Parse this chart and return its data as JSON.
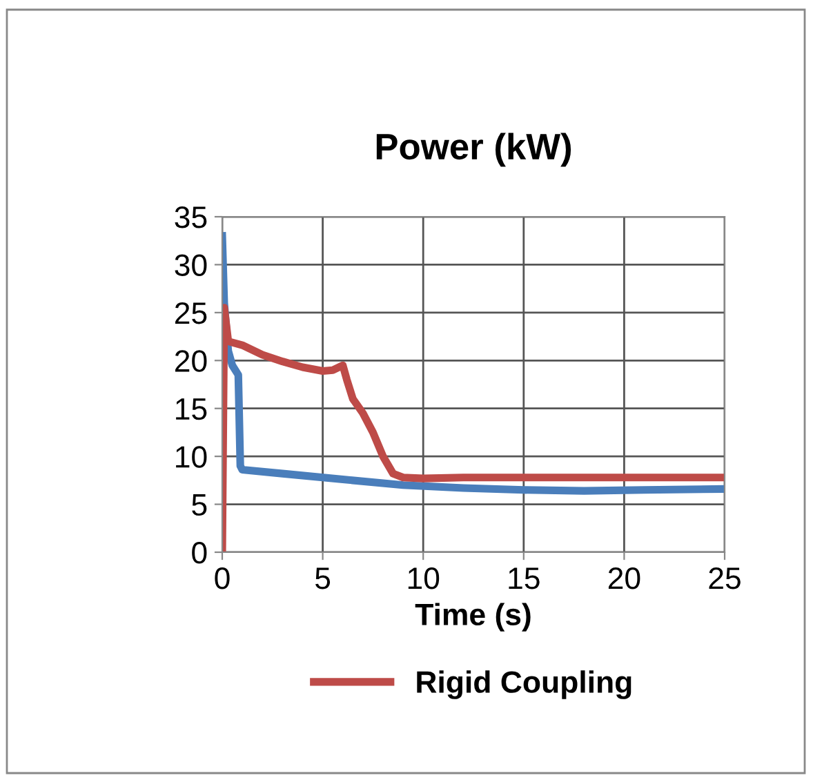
{
  "chart_data": {
    "type": "line",
    "title": "Power (kW)",
    "xlabel": "Time (s)",
    "xlim": [
      0,
      25
    ],
    "xticks": [
      0,
      5,
      10,
      15,
      20,
      25
    ],
    "ylim": [
      0,
      35
    ],
    "yticks": [
      0,
      5,
      10,
      15,
      20,
      25,
      30,
      35
    ],
    "grid": true,
    "legend": "bottom",
    "marker": "none",
    "line_style": "solid",
    "series": [
      {
        "color": "#4a7ebb",
        "x": [
          0,
          0.1,
          0.3,
          0.5,
          0.8,
          0.9,
          1,
          3,
          6,
          9,
          12,
          15,
          18,
          21,
          25
        ],
        "values": [
          33,
          26,
          21,
          19.5,
          18.5,
          9,
          8.6,
          8.2,
          7.6,
          7.0,
          6.7,
          6.5,
          6.4,
          6.5,
          6.6
        ]
      },
      {
        "name": "Rigid Coupling",
        "color": "#be4b48",
        "x": [
          0,
          0.1,
          0.3,
          1,
          2,
          3,
          4,
          5,
          5.5,
          6,
          6.2,
          6.5,
          7,
          7.5,
          8,
          8.5,
          9,
          10,
          12,
          25
        ],
        "values": [
          0,
          25.5,
          22,
          21.6,
          20.6,
          19.9,
          19.3,
          18.9,
          19,
          19.5,
          18,
          16,
          14.5,
          12.5,
          10,
          8.2,
          7.8,
          7.7,
          7.8,
          7.8
        ]
      }
    ]
  }
}
